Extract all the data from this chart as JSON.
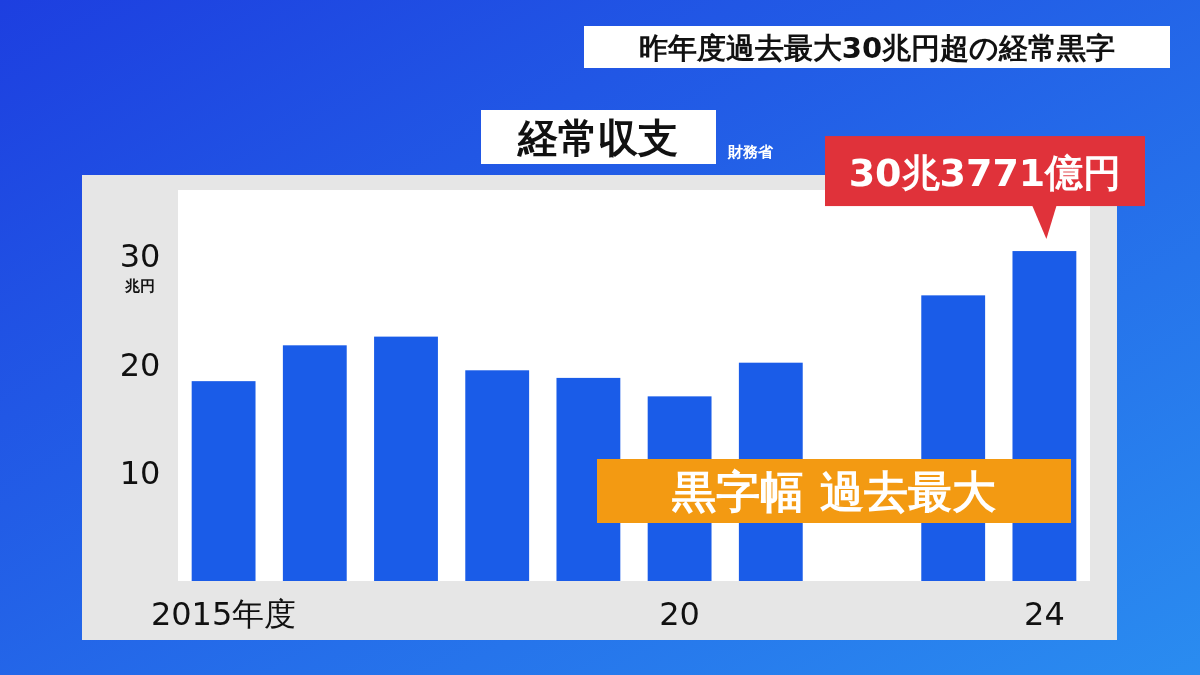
{
  "chart_data": {
    "type": "bar",
    "title": "経常収支",
    "ylabel": "兆円",
    "categories": [
      "2015年度",
      null,
      null,
      null,
      null,
      "20",
      null,
      null,
      null,
      "24"
    ],
    "values": [
      18.4,
      21.7,
      22.5,
      19.4,
      18.7,
      17.0,
      20.1,
      null,
      26.3,
      30.3771
    ],
    "color": "#1a5ce8",
    "ylim": [
      0,
      36
    ],
    "yticks": [
      10,
      20,
      30
    ],
    "grid": false,
    "annotations": [
      "昨年度過去最大30兆円超の経常黒字",
      "財務省",
      {
        "text": "30兆3771億円",
        "x": "24",
        "y": 30.3771
      },
      "黒字幅 過去最大"
    ]
  }
}
